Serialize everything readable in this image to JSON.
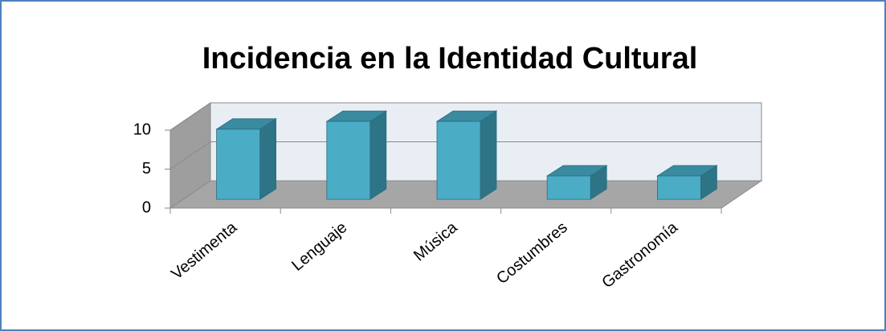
{
  "chart_data": {
    "type": "bar3d",
    "title": "Incidencia en la Identidad Cultural",
    "categories": [
      "Vestimenta",
      "Lenguaje",
      "Música",
      "Costumbres",
      "Gastronomía"
    ],
    "values": [
      9,
      10,
      10,
      3,
      3
    ],
    "color": "#4bacc6",
    "ylim": [
      0,
      10
    ],
    "yticks": [
      0,
      5,
      10
    ],
    "grid": true
  }
}
